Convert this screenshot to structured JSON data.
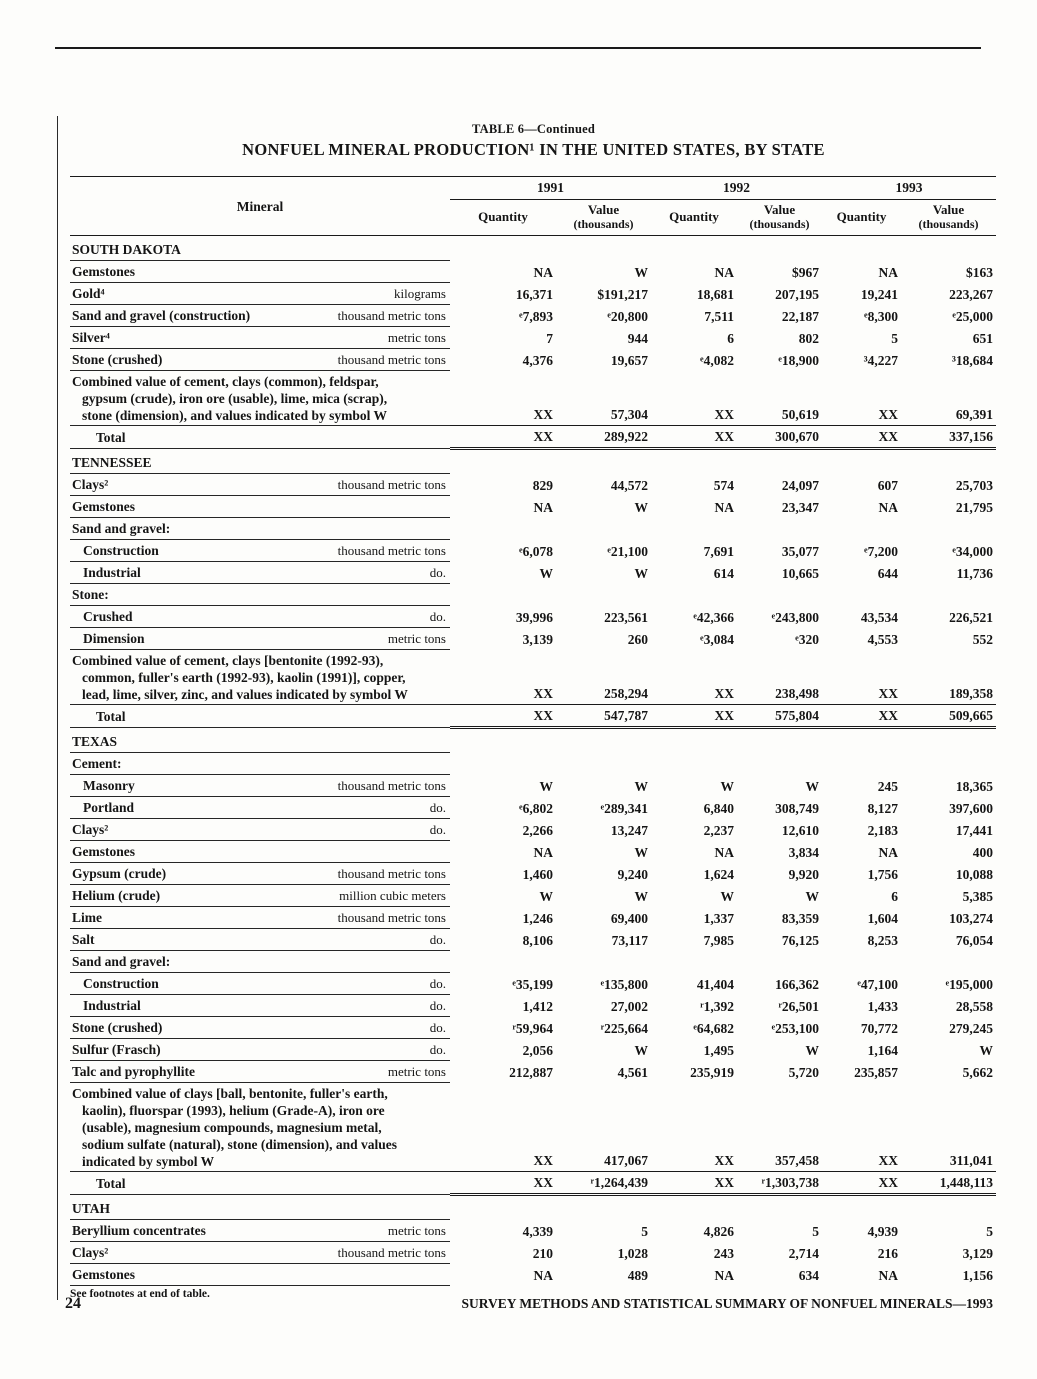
{
  "page": {
    "table_label": "TABLE 6—Continued",
    "title": "NONFUEL MINERAL PRODUCTION¹ IN THE UNITED STATES, BY STATE",
    "footnote": "See footnotes at end of table.",
    "page_number": "24",
    "footer_text": "SURVEY METHODS AND STATISTICAL SUMMARY OF NONFUEL MINERALS—1993"
  },
  "table": {
    "header": {
      "mineral": "Mineral",
      "years": [
        "1991",
        "1992",
        "1993"
      ],
      "quantity": "Quantity",
      "value": "Value",
      "value_unit": "(thousands)"
    },
    "rows": [
      {
        "type": "section",
        "label": "SOUTH DAKOTA"
      },
      {
        "type": "data",
        "label": "Gemstones",
        "unit": "",
        "v": [
          "NA",
          "W",
          "NA",
          "$967",
          "NA",
          "$163"
        ]
      },
      {
        "type": "data",
        "label": "Gold⁴",
        "unit": "kilograms",
        "v": [
          "16,371",
          "$191,217",
          "18,681",
          "207,195",
          "19,241",
          "223,267"
        ]
      },
      {
        "type": "data",
        "label": "Sand and gravel (construction)",
        "unit": "thousand metric tons",
        "v": [
          "ᵉ7,893",
          "ᵉ20,800",
          "7,511",
          "22,187",
          "ᵉ8,300",
          "ᵉ25,000"
        ]
      },
      {
        "type": "data",
        "label": "Silver⁴",
        "unit": "metric tons",
        "v": [
          "7",
          "944",
          "6",
          "802",
          "5",
          "651"
        ]
      },
      {
        "type": "data",
        "label": "Stone (crushed)",
        "unit": "thousand metric tons",
        "v": [
          "4,376",
          "19,657",
          "ᵉ4,082",
          "ᵉ18,900",
          "³4,227",
          "³18,684"
        ]
      },
      {
        "type": "combined",
        "lines": [
          "Combined value of cement, clays (common), feldspar,",
          "gypsum (crude), iron ore (usable), lime, mica (scrap),",
          "stone (dimension), and values indicated by symbol W"
        ],
        "v": [
          "XX",
          "57,304",
          "XX",
          "50,619",
          "XX",
          "69,391"
        ]
      },
      {
        "type": "total",
        "label": "Total",
        "v": [
          "XX",
          "289,922",
          "XX",
          "300,670",
          "XX",
          "337,156"
        ]
      },
      {
        "type": "section",
        "label": "TENNESSEE"
      },
      {
        "type": "data",
        "label": "Clays²",
        "unit": "thousand metric tons",
        "v": [
          "829",
          "44,572",
          "574",
          "24,097",
          "607",
          "25,703"
        ]
      },
      {
        "type": "data",
        "label": "Gemstones",
        "unit": "",
        "v": [
          "NA",
          "W",
          "NA",
          "23,347",
          "NA",
          "21,795"
        ]
      },
      {
        "type": "group",
        "label": "Sand and gravel:"
      },
      {
        "type": "data",
        "label": "Construction",
        "unit": "thousand metric tons",
        "indent": 1,
        "v": [
          "ᵉ6,078",
          "ᵉ21,100",
          "7,691",
          "35,077",
          "ᵉ7,200",
          "ᵉ34,000"
        ]
      },
      {
        "type": "data",
        "label": "Industrial",
        "unit": "do.",
        "indent": 1,
        "v": [
          "W",
          "W",
          "614",
          "10,665",
          "644",
          "11,736"
        ]
      },
      {
        "type": "group",
        "label": "Stone:"
      },
      {
        "type": "data",
        "label": "Crushed",
        "unit": "do.",
        "indent": 1,
        "v": [
          "39,996",
          "223,561",
          "ᵉ42,366",
          "ᵉ243,800",
          "43,534",
          "226,521"
        ]
      },
      {
        "type": "data",
        "label": "Dimension",
        "unit": "metric tons",
        "indent": 1,
        "v": [
          "3,139",
          "260",
          "ᵉ3,084",
          "ᵉ320",
          "4,553",
          "552"
        ]
      },
      {
        "type": "combined",
        "lines": [
          "Combined value of cement, clays [bentonite (1992-93),",
          "common, fuller's earth (1992-93), kaolin (1991)], copper,",
          "lead, lime, silver, zinc, and values indicated by symbol W"
        ],
        "v": [
          "XX",
          "258,294",
          "XX",
          "238,498",
          "XX",
          "189,358"
        ]
      },
      {
        "type": "total",
        "label": "Total",
        "v": [
          "XX",
          "547,787",
          "XX",
          "575,804",
          "XX",
          "509,665"
        ]
      },
      {
        "type": "section",
        "label": "TEXAS"
      },
      {
        "type": "group",
        "label": "Cement:"
      },
      {
        "type": "data",
        "label": "Masonry",
        "unit": "thousand metric tons",
        "indent": 1,
        "v": [
          "W",
          "W",
          "W",
          "W",
          "245",
          "18,365"
        ]
      },
      {
        "type": "data",
        "label": "Portland",
        "unit": "do.",
        "indent": 1,
        "v": [
          "ᵉ6,802",
          "ᵉ289,341",
          "6,840",
          "308,749",
          "8,127",
          "397,600"
        ]
      },
      {
        "type": "data",
        "label": "Clays²",
        "unit": "do.",
        "v": [
          "2,266",
          "13,247",
          "2,237",
          "12,610",
          "2,183",
          "17,441"
        ]
      },
      {
        "type": "data",
        "label": "Gemstones",
        "unit": "",
        "v": [
          "NA",
          "W",
          "NA",
          "3,834",
          "NA",
          "400"
        ]
      },
      {
        "type": "data",
        "label": "Gypsum (crude)",
        "unit": "thousand metric tons",
        "v": [
          "1,460",
          "9,240",
          "1,624",
          "9,920",
          "1,756",
          "10,088"
        ]
      },
      {
        "type": "data",
        "label": "Helium (crude)",
        "unit": "million cubic meters",
        "v": [
          "W",
          "W",
          "W",
          "W",
          "6",
          "5,385"
        ]
      },
      {
        "type": "data",
        "label": "Lime",
        "unit": "thousand metric tons",
        "v": [
          "1,246",
          "69,400",
          "1,337",
          "83,359",
          "1,604",
          "103,274"
        ]
      },
      {
        "type": "data",
        "label": "Salt",
        "unit": "do.",
        "v": [
          "8,106",
          "73,117",
          "7,985",
          "76,125",
          "8,253",
          "76,054"
        ]
      },
      {
        "type": "group",
        "label": "Sand and gravel:"
      },
      {
        "type": "data",
        "label": "Construction",
        "unit": "do.",
        "indent": 1,
        "v": [
          "ᵉ35,199",
          "ᵉ135,800",
          "41,404",
          "166,362",
          "ᵉ47,100",
          "ᵉ195,000"
        ]
      },
      {
        "type": "data",
        "label": "Industrial",
        "unit": "do.",
        "indent": 1,
        "v": [
          "1,412",
          "27,002",
          "ʳ1,392",
          "ʳ26,501",
          "1,433",
          "28,558"
        ]
      },
      {
        "type": "data",
        "label": "Stone (crushed)",
        "unit": "do.",
        "v": [
          "ʳ59,964",
          "ʳ225,664",
          "ᵉ64,682",
          "ᵉ253,100",
          "70,772",
          "279,245"
        ]
      },
      {
        "type": "data",
        "label": "Sulfur (Frasch)",
        "unit": "do.",
        "v": [
          "2,056",
          "W",
          "1,495",
          "W",
          "1,164",
          "W"
        ]
      },
      {
        "type": "data",
        "label": "Talc and pyrophyllite",
        "unit": "metric tons",
        "v": [
          "212,887",
          "4,561",
          "235,919",
          "5,720",
          "235,857",
          "5,662"
        ]
      },
      {
        "type": "combined",
        "lines": [
          "Combined value of clays [ball, bentonite, fuller's earth,",
          "kaolin), fluorspar (1993), helium (Grade-A), iron ore",
          "(usable), magnesium compounds, magnesium metal,",
          "sodium sulfate (natural), stone (dimension), and values",
          "indicated by symbol W"
        ],
        "v": [
          "XX",
          "417,067",
          "XX",
          "357,458",
          "XX",
          "311,041"
        ]
      },
      {
        "type": "total",
        "label": "Total",
        "v": [
          "XX",
          "ʳ1,264,439",
          "XX",
          "ʳ1,303,738",
          "XX",
          "1,448,113"
        ]
      },
      {
        "type": "section",
        "label": "UTAH"
      },
      {
        "type": "data",
        "label": "Beryllium concentrates",
        "unit": "metric tons",
        "v": [
          "4,339",
          "5",
          "4,826",
          "5",
          "4,939",
          "5"
        ]
      },
      {
        "type": "data",
        "label": "Clays²",
        "unit": "thousand metric tons",
        "v": [
          "210",
          "1,028",
          "243",
          "2,714",
          "216",
          "3,129"
        ]
      },
      {
        "type": "data",
        "label": "Gemstones",
        "unit": "",
        "v": [
          "NA",
          "489",
          "NA",
          "634",
          "NA",
          "1,156"
        ]
      }
    ]
  }
}
